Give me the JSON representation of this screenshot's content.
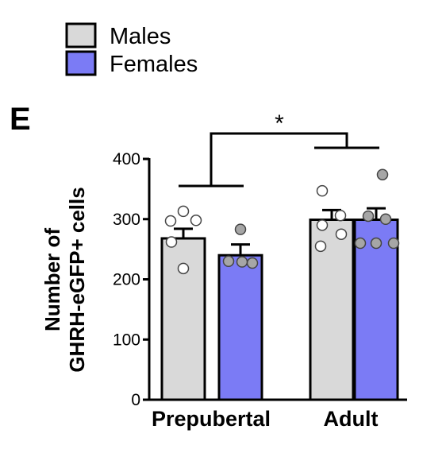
{
  "panel_label": "E",
  "colors": {
    "Males": "#d9d9d9",
    "Females": "#7b7bf5",
    "Males_point": "#ffffff",
    "Females_point": "#a6a6a6"
  },
  "chart_data": {
    "type": "bar",
    "title": "",
    "ylabel_lines": [
      "Number of",
      "GHRH-eGFP+ cells"
    ],
    "xlabel": "",
    "categories": [
      "Prepubertal",
      "Adult"
    ],
    "ylim": [
      0,
      400
    ],
    "yticks": [
      0,
      100,
      200,
      300,
      400
    ],
    "grid": false,
    "legend_position": "top-left",
    "series": [
      {
        "name": "Males",
        "values": [
          268,
          299
        ],
        "sem": [
          16,
          16
        ],
        "points": [
          [
            313,
            297,
            298,
            262,
            218
          ],
          [
            347,
            306,
            290,
            275,
            255
          ]
        ]
      },
      {
        "name": "Females",
        "values": [
          240,
          299
        ],
        "sem": [
          18,
          19
        ],
        "points": [
          [
            283,
            230,
            227,
            229
          ],
          [
            374,
            305,
            300,
            260,
            260,
            260
          ]
        ]
      }
    ],
    "significance": {
      "label": "*",
      "between": [
        "Prepubertal",
        "Adult"
      ]
    }
  }
}
